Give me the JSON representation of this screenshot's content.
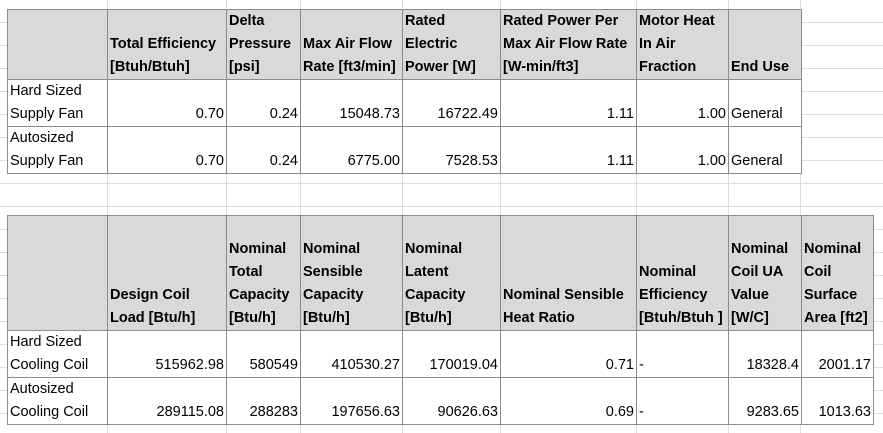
{
  "fans": {
    "headers": [
      "",
      "Total Efficiency [Btuh/Btuh]",
      "Delta Pressure [psi]",
      "Max Air Flow Rate [ft3/min]",
      "Rated Electric Power [W]",
      "Rated Power Per Max Air Flow Rate [W-min/ft3]",
      "Motor Heat In Air Fraction",
      "End Use"
    ],
    "rows": [
      [
        "Hard Sized Supply Fan",
        "0.70",
        "0.24",
        "15048.73",
        "16722.49",
        "1.11",
        "1.00",
        "General"
      ],
      [
        "Autosized Supply Fan",
        "0.70",
        "0.24",
        "6775.00",
        "7528.53",
        "1.11",
        "1.00",
        "General"
      ]
    ]
  },
  "coils": {
    "headers": [
      "",
      "Design Coil Load [Btu/h]",
      "Nominal Total Capacity [Btu/h]",
      "Nominal Sensible Capacity [Btu/h]",
      "Nominal Latent Capacity [Btu/h]",
      "Nominal Sensible Heat Ratio",
      "Nominal Efficiency [Btuh/Btuh ]",
      "Nominal Coil UA Value [W/C]",
      "Nominal Coil Surface Area [ft2]"
    ],
    "rows": [
      [
        "Hard Sized Cooling Coil",
        "515962.98",
        "580549",
        "410530.27",
        "170019.04",
        "0.71",
        "-",
        "18328.4",
        "2001.17"
      ],
      [
        "Autosized Cooling Coil",
        "289115.08",
        "288283",
        "197656.63",
        "90626.63",
        "0.69",
        "-",
        "9283.65",
        "1013.63"
      ]
    ]
  }
}
